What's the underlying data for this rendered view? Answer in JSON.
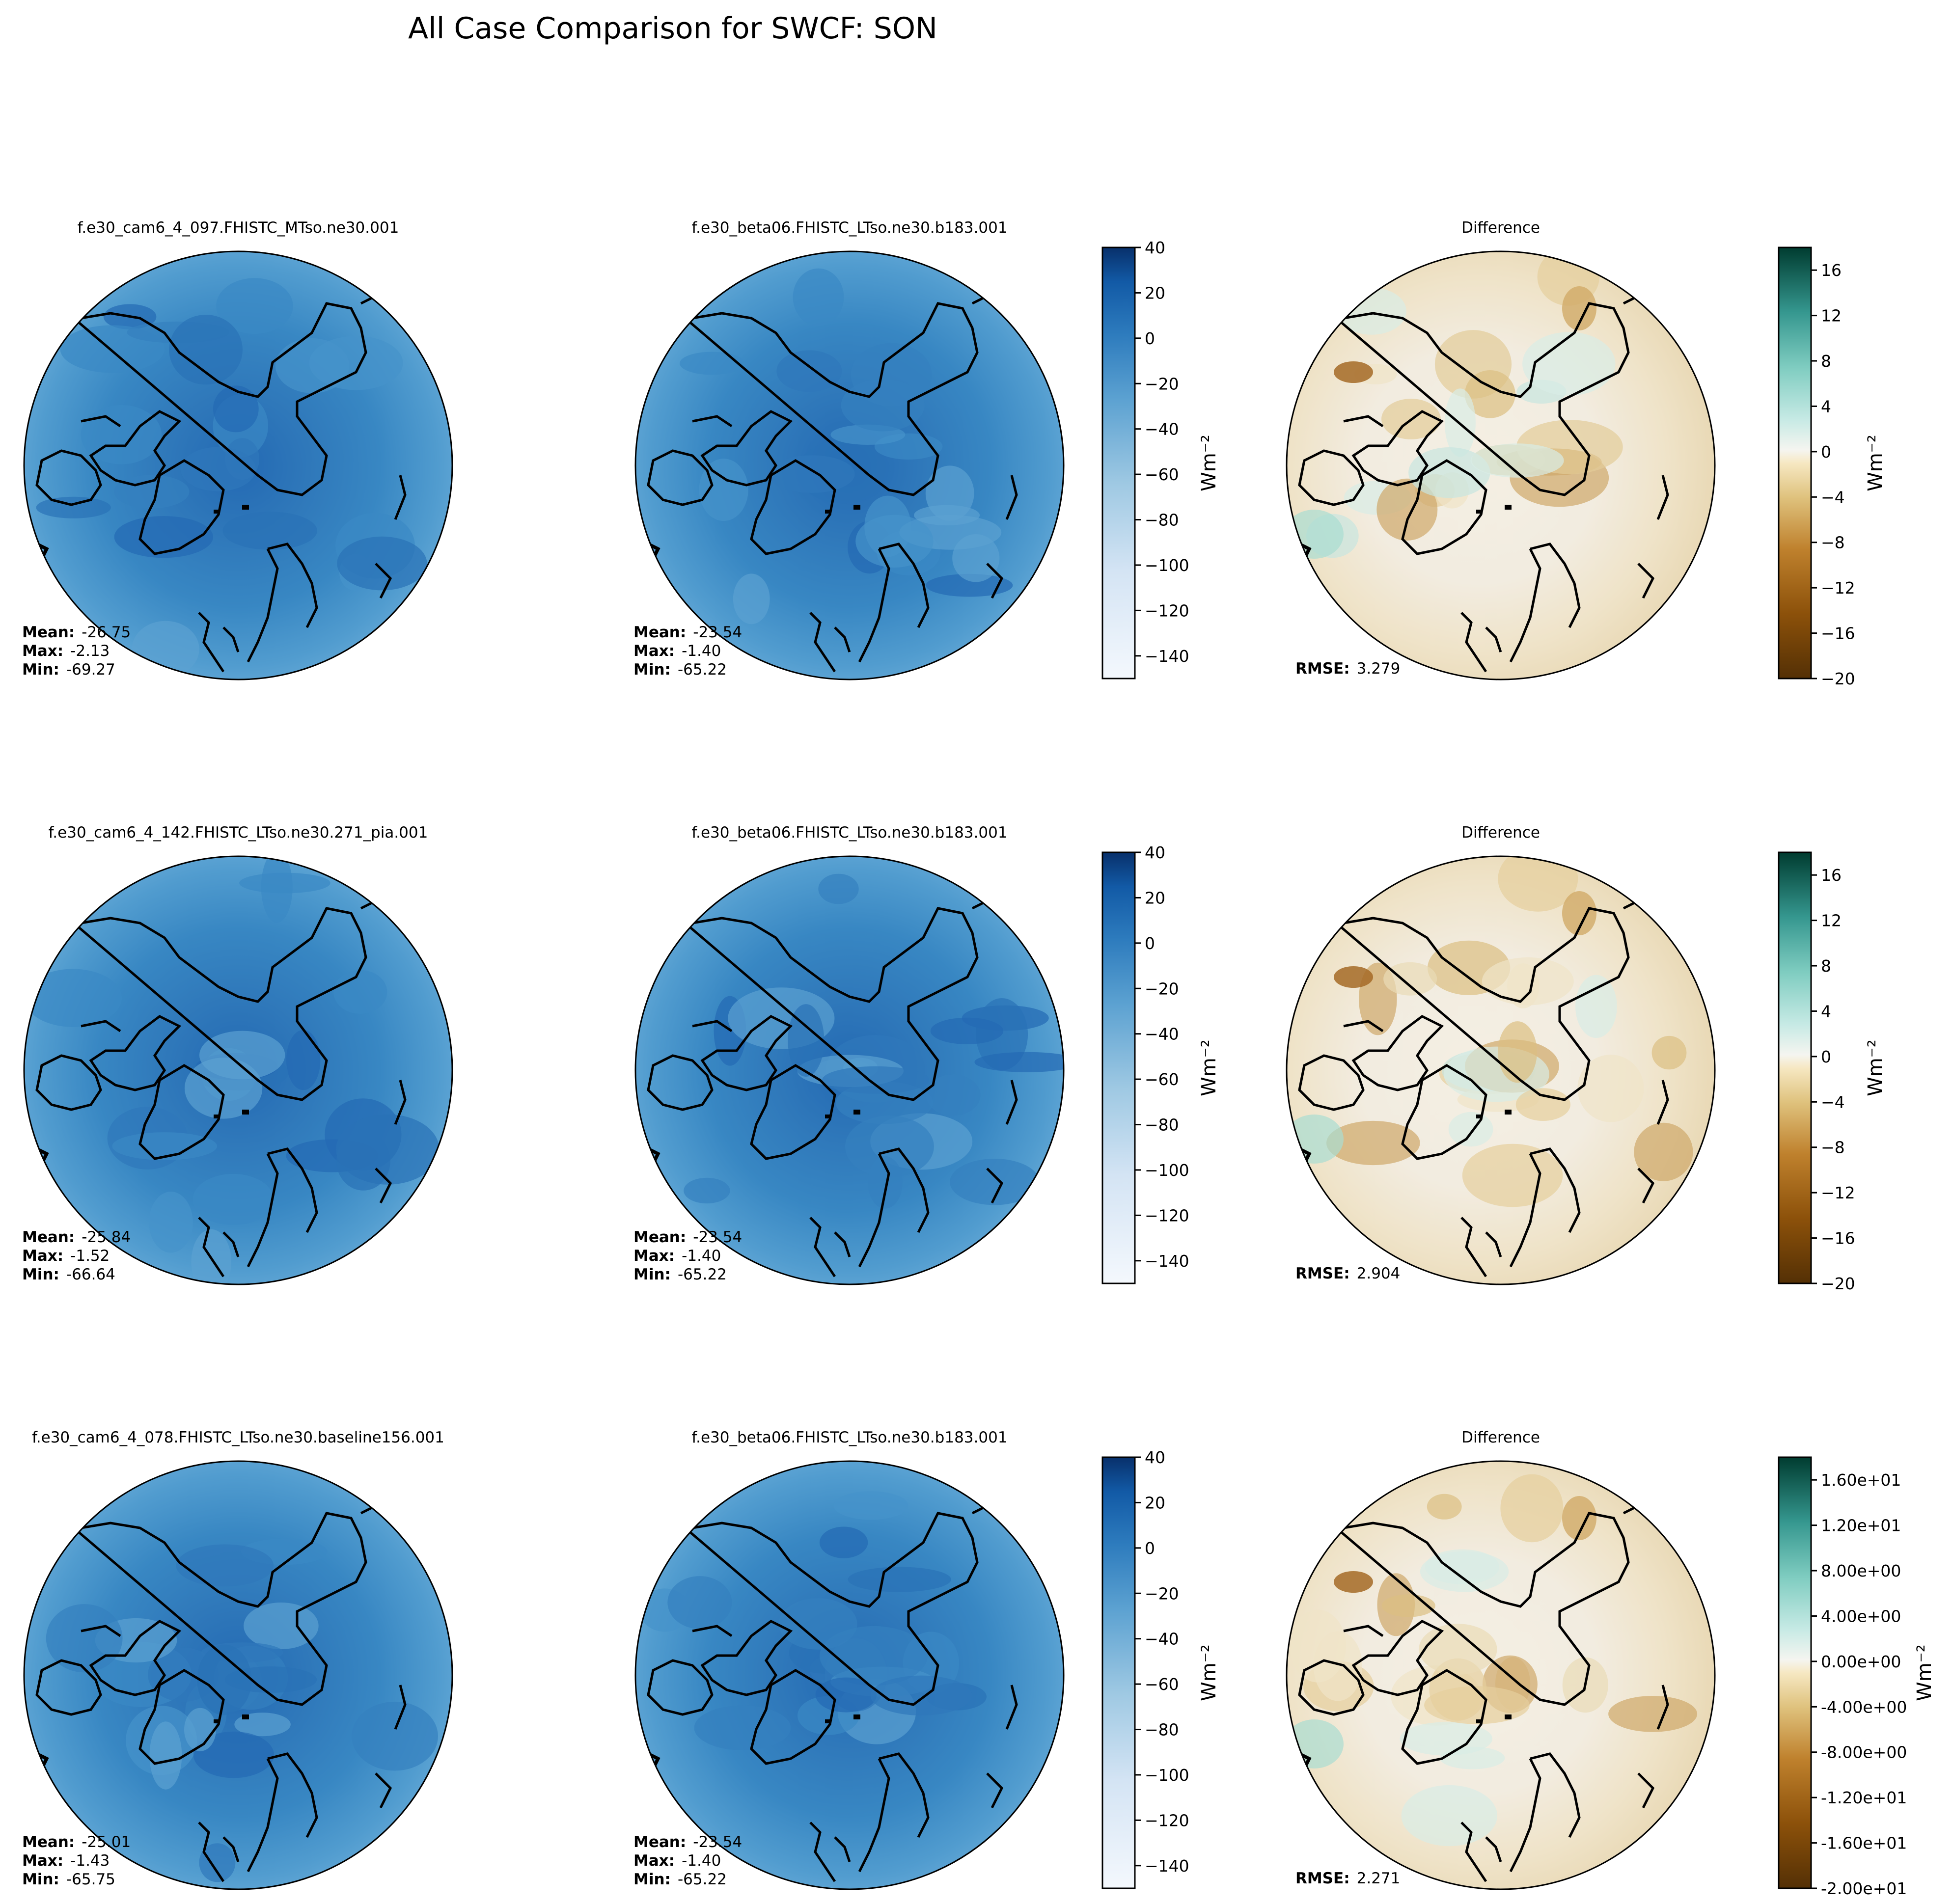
{
  "figure": {
    "title": "All Case Comparison for SWCF: SON"
  },
  "chart_data": [
    {
      "type": "heatmap",
      "row": 1,
      "kind": "test",
      "title": "f.e30_cam6_4_097.FHISTC_MTso.ne30.001",
      "stats": [
        {
          "label": "Mean:",
          "value": "-26.75"
        },
        {
          "label": "Max:",
          "value": "-2.13"
        },
        {
          "label": "Min:",
          "value": "-69.27"
        }
      ]
    },
    {
      "type": "heatmap",
      "row": 1,
      "kind": "baseline",
      "title": "f.e30_beta06.FHISTC_LTso.ne30.b183.001",
      "stats": [
        {
          "label": "Mean:",
          "value": "-23.54"
        },
        {
          "label": "Max:",
          "value": "-1.40"
        },
        {
          "label": "Min:",
          "value": "-65.22"
        }
      ],
      "colorbar": {
        "label": "Wm⁻²",
        "range": [
          -150,
          40
        ],
        "ticks": [
          "40",
          "20",
          "0",
          "−20",
          "−40",
          "−60",
          "−80",
          "−100",
          "−120",
          "−140"
        ]
      }
    },
    {
      "type": "heatmap",
      "row": 1,
      "kind": "difference",
      "title": "Difference",
      "stats": [
        {
          "label": "RMSE:",
          "value": "3.279"
        }
      ],
      "colorbar": {
        "label": "Wm⁻²",
        "range": [
          -20,
          18
        ],
        "ticks": [
          "16",
          "12",
          "8",
          "4",
          "0",
          "−4",
          "−8",
          "−12",
          "−16",
          "−20"
        ]
      }
    },
    {
      "type": "heatmap",
      "row": 2,
      "kind": "test",
      "title": "f.e30_cam6_4_142.FHISTC_LTso.ne30.271_pia.001",
      "stats": [
        {
          "label": "Mean:",
          "value": "-25.84"
        },
        {
          "label": "Max:",
          "value": "-1.52"
        },
        {
          "label": "Min:",
          "value": "-66.64"
        }
      ]
    },
    {
      "type": "heatmap",
      "row": 2,
      "kind": "baseline",
      "title": "f.e30_beta06.FHISTC_LTso.ne30.b183.001",
      "stats": [
        {
          "label": "Mean:",
          "value": "-23.54"
        },
        {
          "label": "Max:",
          "value": "-1.40"
        },
        {
          "label": "Min:",
          "value": "-65.22"
        }
      ],
      "colorbar": {
        "label": "Wm⁻²",
        "range": [
          -150,
          40
        ],
        "ticks": [
          "40",
          "20",
          "0",
          "−20",
          "−40",
          "−60",
          "−80",
          "−100",
          "−120",
          "−140"
        ]
      }
    },
    {
      "type": "heatmap",
      "row": 2,
      "kind": "difference",
      "title": "Difference",
      "stats": [
        {
          "label": "RMSE:",
          "value": "2.904"
        }
      ],
      "colorbar": {
        "label": "Wm⁻²",
        "range": [
          -20,
          18
        ],
        "ticks": [
          "16",
          "12",
          "8",
          "4",
          "0",
          "−4",
          "−8",
          "−12",
          "−16",
          "−20"
        ]
      }
    },
    {
      "type": "heatmap",
      "row": 3,
      "kind": "test",
      "title": "f.e30_cam6_4_078.FHISTC_LTso.ne30.baseline156.001",
      "stats": [
        {
          "label": "Mean:",
          "value": "-25.01"
        },
        {
          "label": "Max:",
          "value": "-1.43"
        },
        {
          "label": "Min:",
          "value": "-65.75"
        }
      ]
    },
    {
      "type": "heatmap",
      "row": 3,
      "kind": "baseline",
      "title": "f.e30_beta06.FHISTC_LTso.ne30.b183.001",
      "stats": [
        {
          "label": "Mean:",
          "value": "-23.54"
        },
        {
          "label": "Max:",
          "value": "-1.40"
        },
        {
          "label": "Min:",
          "value": "-65.22"
        }
      ],
      "colorbar": {
        "label": "Wm⁻²",
        "range": [
          -150,
          40
        ],
        "ticks": [
          "40",
          "20",
          "0",
          "−20",
          "−40",
          "−60",
          "−80",
          "−100",
          "−120",
          "−140"
        ]
      }
    },
    {
      "type": "heatmap",
      "row": 3,
      "kind": "difference",
      "title": "Difference",
      "stats": [
        {
          "label": "RMSE:",
          "value": "2.271"
        }
      ],
      "colorbar": {
        "label": "Wm⁻²",
        "range": [
          -20,
          18
        ],
        "ticks": [
          "1.60e+01",
          "1.20e+01",
          "8.00e+00",
          "4.00e+00",
          "0.00e+00",
          "-4.00e+00",
          "-8.00e+00",
          "-1.20e+01",
          "-1.60e+01",
          "-2.00e+01"
        ]
      }
    }
  ]
}
